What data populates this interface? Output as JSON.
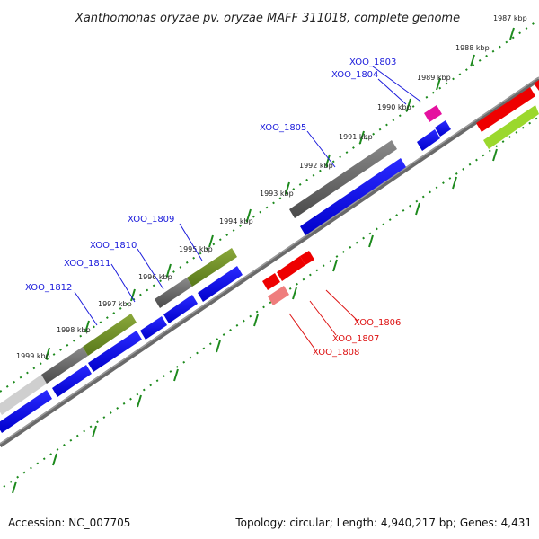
{
  "title": "Xanthomonas oryzae pv. oryzae MAFF 311018, complete genome",
  "footer": {
    "accession": "Accession: NC_007705",
    "summary": "Topology: circular; Length: 4,940,217 bp; Genes: 4,431"
  },
  "ruler": {
    "ticks": [
      "1987 kbp",
      "1988 kbp",
      "1989 kbp",
      "1990 kbp",
      "1991 kbp",
      "1992 kbp",
      "1993 kbp",
      "1994 kbp",
      "1995 kbp",
      "1996 kbp",
      "1997 kbp",
      "1998 kbp",
      "1999 kbp"
    ]
  },
  "loci_forward": [
    "XOO_1803",
    "XOO_1804",
    "XOO_1805",
    "XOO_1809",
    "XOO_1810",
    "XOO_1811",
    "XOO_1812"
  ],
  "loci_reverse": [
    "XOO_1806",
    "XOO_1807",
    "XOO_1808"
  ],
  "colors": {
    "strand_blue": "#0000ee",
    "dark_gray": "#5a5a5a",
    "olive": "#6b8c1e",
    "red": "#ee0000",
    "pink": "#ef7d7d",
    "magenta": "#e5119f",
    "lime": "#9bd82d",
    "light_gray": "#c8c8c8",
    "dot_green": "#1d8a1d",
    "label_blue": "#1a1adb",
    "label_red": "#dd1111"
  }
}
